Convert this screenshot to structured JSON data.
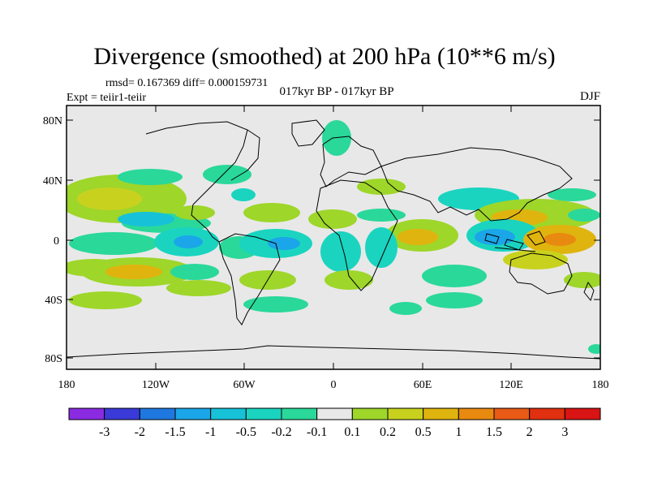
{
  "title": "Divergence (smoothed) at 200 hPa (10**6 m/s)",
  "stats": "rmsd= 0.167369 diff= 0.000159731",
  "experiment": "Expt = teiir1-teiir",
  "period": "017kyr BP - 017kyr BP",
  "season": "DJF",
  "lat_ticks": [
    "80N",
    "40N",
    "0",
    "40S",
    "80S"
  ],
  "lon_ticks": [
    "180",
    "120W",
    "60W",
    "0",
    "60E",
    "120E",
    "180"
  ],
  "colorbar": {
    "labels": [
      "-3",
      "-2",
      "-1.5",
      "-1",
      "-0.5",
      "-0.2",
      "-0.1",
      "0.1",
      "0.2",
      "0.5",
      "1",
      "1.5",
      "2",
      "3"
    ],
    "colors": [
      "#8a2be2",
      "#3a3ad8",
      "#1f78e0",
      "#1aa6e8",
      "#17c2d8",
      "#1ad4c0",
      "#2ad89a",
      "#e8e8e8",
      "#9ed62a",
      "#c8d21e",
      "#e0b40e",
      "#e88a10",
      "#e85a16",
      "#e03010",
      "#d81414"
    ]
  }
}
